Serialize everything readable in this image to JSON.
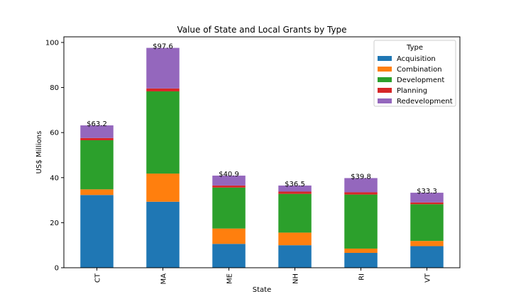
{
  "chart_data": {
    "type": "bar",
    "stacked": true,
    "title": "Value of State and Local Grants by Type",
    "xlabel": "State",
    "ylabel": "US$ Millions",
    "ylim": [
      0,
      102.5
    ],
    "yticks": [
      0,
      20,
      40,
      60,
      80,
      100
    ],
    "categories": [
      "CT",
      "MA",
      "ME",
      "NH",
      "RI",
      "VT"
    ],
    "series": [
      {
        "name": "Acquisition",
        "color": "#1f77b4",
        "values": [
          32.3,
          29.3,
          10.6,
          10.0,
          6.6,
          9.6
        ]
      },
      {
        "name": "Combination",
        "color": "#ff7f0e",
        "values": [
          2.5,
          12.5,
          6.8,
          5.6,
          1.9,
          2.3
        ]
      },
      {
        "name": "Development",
        "color": "#2ca02c",
        "values": [
          21.8,
          36.5,
          18.2,
          17.2,
          24.0,
          16.3
        ]
      },
      {
        "name": "Planning",
        "color": "#d62728",
        "values": [
          1.0,
          1.3,
          0.9,
          1.0,
          1.0,
          0.8
        ]
      },
      {
        "name": "Redevelopment",
        "color": "#9467bd",
        "values": [
          5.6,
          18.0,
          4.4,
          2.7,
          6.3,
          4.3
        ]
      }
    ],
    "totals": [
      "$63.2",
      "$97.6",
      "$40.9",
      "$36.5",
      "$39.8",
      "$33.3"
    ],
    "legend": {
      "title": "Type",
      "placement": "top-right"
    },
    "grid": false
  }
}
